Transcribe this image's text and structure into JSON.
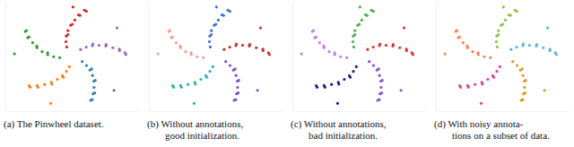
{
  "chart_data": [
    {
      "type": "scatter",
      "title": [
        "(a) The Pinwheel dataset."
      ],
      "xlim": [
        -1.1,
        1.1
      ],
      "ylim": [
        -1.05,
        1.05
      ],
      "tick_labels": false,
      "series": [
        {
          "color": "#d62728",
          "x": [
            -0.083,
            -0.097,
            -0.091,
            -0.064,
            -0.017,
            0.05,
            0.136,
            0.242,
            -0.065,
            0.01,
            0.11,
            0.21,
            0.02
          ],
          "values": [
            0.182,
            0.284,
            0.39,
            0.496,
            0.6,
            0.698,
            0.788,
            0.867,
            0.42,
            0.62,
            0.8,
            0.89,
            0.95
          ]
        },
        {
          "color": "#9467bd",
          "x": [
            0.147,
            0.24,
            0.342,
            0.452,
            0.565,
            0.68,
            0.792,
            0.899,
            0.35,
            0.57,
            0.79,
            0.88,
            0.75
          ],
          "values": [
            0.135,
            0.18,
            0.207,
            0.215,
            0.201,
            0.168,
            0.114,
            0.038,
            0.24,
            0.23,
            0.14,
            0.07,
            0.55
          ]
        },
        {
          "color": "#2f7fb0",
          "x": [
            0.174,
            0.245,
            0.302,
            0.344,
            0.366,
            0.37,
            0.353,
            0.314,
            0.33,
            0.39,
            0.38,
            0.34,
            0.7
          ],
          "values": [
            -0.098,
            -0.173,
            -0.262,
            -0.364,
            -0.475,
            -0.594,
            -0.718,
            -0.843,
            -0.24,
            -0.46,
            -0.7,
            -0.83,
            -0.65
          ]
        },
        {
          "color": "#ff7f0e",
          "x": [
            -0.04,
            -0.089,
            -0.156,
            -0.239,
            -0.339,
            -0.451,
            -0.574,
            -0.705,
            -0.14,
            -0.33,
            -0.56,
            -0.69,
            -0.35
          ],
          "values": [
            -0.196,
            -0.287,
            -0.368,
            -0.439,
            -0.495,
            -0.536,
            -0.558,
            -0.559,
            -0.4,
            -0.53,
            -0.59,
            -0.59,
            -0.9
          ]
        },
        {
          "color": "#2ca02c",
          "x": [
            -0.199,
            -0.3,
            -0.398,
            -0.491,
            -0.576,
            -0.649,
            -0.708,
            -0.75,
            -0.4,
            -0.58,
            -0.73,
            -0.77,
            -0.95
          ],
          "values": [
            -0.023,
            -0.004,
            0.034,
            0.092,
            0.169,
            0.263,
            0.373,
            0.498,
            0.07,
            0.2,
            0.36,
            0.48,
            0.05
          ]
        }
      ]
    },
    {
      "type": "scatter",
      "title": [
        "(b) Without annotations,",
        "good initialization."
      ],
      "xlim": [
        -1.1,
        1.1
      ],
      "ylim": [
        -1.05,
        1.05
      ],
      "tick_labels": false,
      "series": [
        {
          "color": "#3d6fd8",
          "x": [
            -0.083,
            -0.097,
            -0.091,
            -0.064,
            -0.017,
            0.05,
            0.136,
            0.242,
            -0.065,
            0.01,
            0.11,
            0.21,
            0.02
          ],
          "values": [
            0.182,
            0.284,
            0.39,
            0.496,
            0.6,
            0.698,
            0.788,
            0.867,
            0.42,
            0.62,
            0.8,
            0.89,
            0.95
          ]
        },
        {
          "color": "#c9302c",
          "x": [
            0.147,
            0.24,
            0.342,
            0.452,
            0.565,
            0.68,
            0.792,
            0.899,
            0.35,
            0.57,
            0.79,
            0.88,
            0.75
          ],
          "values": [
            0.135,
            0.18,
            0.207,
            0.215,
            0.201,
            0.168,
            0.114,
            0.038,
            0.24,
            0.23,
            0.14,
            0.07,
            0.55
          ]
        },
        {
          "color": "#7b52c9",
          "x": [
            0.174,
            0.245,
            0.302,
            0.344,
            0.366,
            0.37,
            0.353,
            0.314,
            0.33,
            0.39,
            0.38,
            0.34,
            0.7
          ],
          "values": [
            -0.098,
            -0.173,
            -0.262,
            -0.364,
            -0.475,
            -0.594,
            -0.718,
            -0.843,
            -0.24,
            -0.46,
            -0.7,
            -0.83,
            -0.65
          ]
        },
        {
          "color": "#2bb5b0",
          "x": [
            -0.04,
            -0.089,
            -0.156,
            -0.239,
            -0.339,
            -0.451,
            -0.574,
            -0.705,
            -0.14,
            -0.33,
            -0.56,
            -0.69,
            -0.35
          ],
          "values": [
            -0.196,
            -0.287,
            -0.368,
            -0.439,
            -0.495,
            -0.536,
            -0.558,
            -0.559,
            -0.4,
            -0.53,
            -0.59,
            -0.59,
            -0.9
          ]
        },
        {
          "color": "#f0a08a",
          "x": [
            -0.199,
            -0.3,
            -0.398,
            -0.491,
            -0.576,
            -0.649,
            -0.708,
            -0.75,
            -0.4,
            -0.58,
            -0.73,
            -0.77,
            -0.95
          ],
          "values": [
            -0.023,
            -0.004,
            0.034,
            0.092,
            0.169,
            0.263,
            0.373,
            0.498,
            0.07,
            0.2,
            0.36,
            0.48,
            0.05
          ]
        }
      ]
    },
    {
      "type": "scatter",
      "title": [
        "(c) Without annotations,",
        "bad initialization."
      ],
      "xlim": [
        -1.1,
        1.1
      ],
      "ylim": [
        -1.05,
        1.05
      ],
      "tick_labels": false,
      "series": [
        {
          "color": "#4caf50",
          "x": [
            -0.083,
            -0.097,
            -0.091,
            -0.064,
            -0.017,
            0.05,
            0.136,
            0.242,
            -0.065,
            0.01,
            0.11,
            0.21,
            0.02
          ],
          "values": [
            0.182,
            0.284,
            0.39,
            0.496,
            0.6,
            0.698,
            0.788,
            0.867,
            0.42,
            0.62,
            0.8,
            0.89,
            0.95
          ]
        },
        {
          "color": "#e03030",
          "x": [
            0.147,
            0.24,
            0.342,
            0.452,
            0.565,
            0.68,
            0.792,
            0.899,
            0.35,
            0.57,
            0.79,
            0.88,
            0.75
          ],
          "values": [
            0.135,
            0.18,
            0.207,
            0.215,
            0.201,
            0.168,
            0.114,
            0.038,
            0.24,
            0.23,
            0.14,
            0.07,
            0.55
          ]
        },
        {
          "color": "#8a4fd0",
          "x": [
            0.174,
            0.245,
            0.302,
            0.344,
            0.366,
            0.37,
            0.353,
            0.314,
            0.33,
            0.39,
            0.38,
            0.34,
            0.7
          ],
          "values": [
            -0.098,
            -0.173,
            -0.262,
            -0.364,
            -0.475,
            -0.594,
            -0.718,
            -0.843,
            -0.24,
            -0.46,
            -0.7,
            -0.83,
            -0.65
          ]
        },
        {
          "color": "#1a237e",
          "x": [
            -0.04,
            -0.089,
            -0.156,
            -0.239,
            -0.339,
            -0.451,
            -0.574,
            -0.705,
            -0.14,
            -0.33,
            -0.56,
            -0.69,
            -0.35
          ],
          "values": [
            -0.196,
            -0.287,
            -0.368,
            -0.439,
            -0.495,
            -0.536,
            -0.558,
            -0.559,
            -0.4,
            -0.53,
            -0.59,
            -0.59,
            -0.9
          ]
        },
        {
          "color": "#c080e0",
          "x": [
            -0.199,
            -0.3,
            -0.398,
            -0.491,
            -0.576,
            -0.649,
            -0.708,
            -0.75,
            -0.4,
            -0.58,
            -0.73,
            -0.77,
            -0.95
          ],
          "values": [
            -0.023,
            -0.004,
            0.034,
            0.092,
            0.169,
            0.263,
            0.373,
            0.498,
            0.07,
            0.2,
            0.36,
            0.48,
            0.05
          ]
        }
      ]
    },
    {
      "type": "scatter",
      "title": [
        "(d) With noisy annota-",
        "tions on a subset of data."
      ],
      "xlim": [
        -1.1,
        1.1
      ],
      "ylim": [
        -1.05,
        1.05
      ],
      "tick_labels": false,
      "series": [
        {
          "color": "#8bc34a",
          "x": [
            -0.083,
            -0.097,
            -0.091,
            -0.064,
            -0.017,
            0.05,
            0.136,
            0.242,
            -0.065,
            0.01,
            0.11,
            0.21,
            0.02
          ],
          "values": [
            0.182,
            0.284,
            0.39,
            0.496,
            0.6,
            0.698,
            0.788,
            0.867,
            0.42,
            0.62,
            0.8,
            0.89,
            0.95
          ]
        },
        {
          "color": "#5ab4e8",
          "x": [
            0.147,
            0.24,
            0.342,
            0.452,
            0.565,
            0.68,
            0.792,
            0.899,
            0.35,
            0.57,
            0.79,
            0.88,
            0.75
          ],
          "values": [
            0.135,
            0.18,
            0.207,
            0.215,
            0.201,
            0.168,
            0.114,
            0.038,
            0.24,
            0.23,
            0.14,
            0.07,
            0.55
          ]
        },
        {
          "color": "#d4a017",
          "x": [
            0.174,
            0.245,
            0.302,
            0.344,
            0.366,
            0.37,
            0.353,
            0.314,
            0.33,
            0.39,
            0.38,
            0.34,
            0.7
          ],
          "values": [
            -0.098,
            -0.173,
            -0.262,
            -0.364,
            -0.475,
            -0.594,
            -0.718,
            -0.843,
            -0.24,
            -0.46,
            -0.7,
            -0.83,
            -0.65
          ]
        },
        {
          "color": "#e040a0",
          "x": [
            -0.04,
            -0.089,
            -0.156,
            -0.239,
            -0.339,
            -0.451,
            -0.574,
            -0.705,
            -0.14,
            -0.33,
            -0.56,
            -0.69,
            -0.35
          ],
          "values": [
            -0.196,
            -0.287,
            -0.368,
            -0.439,
            -0.495,
            -0.536,
            -0.558,
            -0.559,
            -0.4,
            -0.53,
            -0.59,
            -0.59,
            -0.9
          ]
        },
        {
          "color": "#ff7f50",
          "x": [
            -0.199,
            -0.3,
            -0.398,
            -0.491,
            -0.576,
            -0.649,
            -0.708,
            -0.75,
            -0.4,
            -0.58,
            -0.73,
            -0.77,
            -0.95
          ],
          "values": [
            -0.023,
            -0.004,
            0.034,
            0.092,
            0.169,
            0.263,
            0.373,
            0.498,
            0.07,
            0.2,
            0.36,
            0.48,
            0.05
          ]
        }
      ]
    }
  ]
}
